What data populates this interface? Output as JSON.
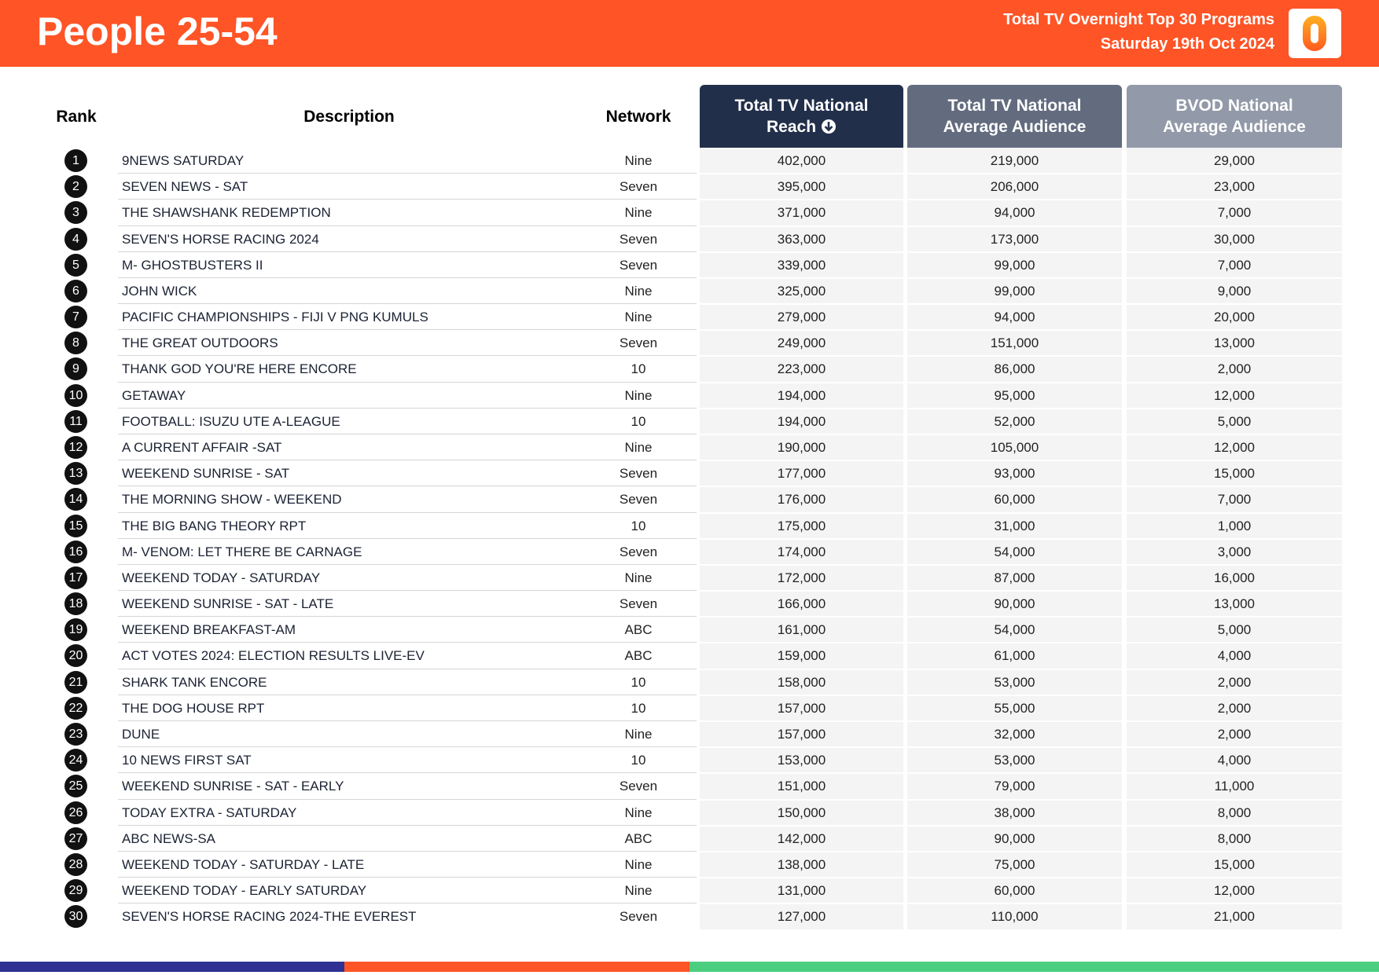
{
  "header": {
    "title": "People 25-54",
    "subtitle": "Total TV Overnight Top 30 Programs",
    "date": "Saturday 19th Oct 2024"
  },
  "table": {
    "columns": [
      [
        "Rank"
      ],
      [
        "Description"
      ],
      [
        "Network"
      ],
      [
        "Total TV National",
        "Reach"
      ],
      [
        "Total TV National",
        "Average Audience"
      ],
      [
        "BVOD National",
        "Average Audience"
      ]
    ],
    "rows": [
      [
        1,
        "9NEWS SATURDAY",
        "Nine",
        "402,000",
        "219,000",
        "29,000"
      ],
      [
        2,
        "SEVEN NEWS - SAT",
        "Seven",
        "395,000",
        "206,000",
        "23,000"
      ],
      [
        3,
        "THE SHAWSHANK REDEMPTION",
        "Nine",
        "371,000",
        "94,000",
        "7,000"
      ],
      [
        4,
        "SEVEN'S HORSE RACING 2024",
        "Seven",
        "363,000",
        "173,000",
        "30,000"
      ],
      [
        5,
        "M- GHOSTBUSTERS II",
        "Seven",
        "339,000",
        "99,000",
        "7,000"
      ],
      [
        6,
        "JOHN WICK",
        "Nine",
        "325,000",
        "99,000",
        "9,000"
      ],
      [
        7,
        "PACIFIC CHAMPIONSHIPS - FIJI V PNG KUMULS",
        "Nine",
        "279,000",
        "94,000",
        "20,000"
      ],
      [
        8,
        "THE GREAT OUTDOORS",
        "Seven",
        "249,000",
        "151,000",
        "13,000"
      ],
      [
        9,
        "THANK GOD YOU'RE HERE ENCORE",
        "10",
        "223,000",
        "86,000",
        "2,000"
      ],
      [
        10,
        "GETAWAY",
        "Nine",
        "194,000",
        "95,000",
        "12,000"
      ],
      [
        11,
        "FOOTBALL: ISUZU UTE A-LEAGUE",
        "10",
        "194,000",
        "52,000",
        "5,000"
      ],
      [
        12,
        "A CURRENT AFFAIR -SAT",
        "Nine",
        "190,000",
        "105,000",
        "12,000"
      ],
      [
        13,
        "WEEKEND SUNRISE - SAT",
        "Seven",
        "177,000",
        "93,000",
        "15,000"
      ],
      [
        14,
        "THE MORNING SHOW - WEEKEND",
        "Seven",
        "176,000",
        "60,000",
        "7,000"
      ],
      [
        15,
        "THE BIG BANG THEORY RPT",
        "10",
        "175,000",
        "31,000",
        "1,000"
      ],
      [
        16,
        "M- VENOM: LET THERE BE CARNAGE",
        "Seven",
        "174,000",
        "54,000",
        "3,000"
      ],
      [
        17,
        "WEEKEND TODAY - SATURDAY",
        "Nine",
        "172,000",
        "87,000",
        "16,000"
      ],
      [
        18,
        "WEEKEND SUNRISE - SAT - LATE",
        "Seven",
        "166,000",
        "90,000",
        "13,000"
      ],
      [
        19,
        "WEEKEND BREAKFAST-AM",
        "ABC",
        "161,000",
        "54,000",
        "5,000"
      ],
      [
        20,
        "ACT VOTES 2024: ELECTION RESULTS LIVE-EV",
        "ABC",
        "159,000",
        "61,000",
        "4,000"
      ],
      [
        21,
        "SHARK TANK ENCORE",
        "10",
        "158,000",
        "53,000",
        "2,000"
      ],
      [
        22,
        "THE DOG HOUSE RPT",
        "10",
        "157,000",
        "55,000",
        "2,000"
      ],
      [
        23,
        "DUNE",
        "Nine",
        "157,000",
        "32,000",
        "2,000"
      ],
      [
        24,
        "10 NEWS FIRST SAT",
        "10",
        "153,000",
        "53,000",
        "4,000"
      ],
      [
        25,
        "WEEKEND SUNRISE - SAT - EARLY",
        "Seven",
        "151,000",
        "79,000",
        "11,000"
      ],
      [
        26,
        "TODAY EXTRA - SATURDAY",
        "Nine",
        "150,000",
        "38,000",
        "8,000"
      ],
      [
        27,
        "ABC NEWS-SA",
        "ABC",
        "142,000",
        "90,000",
        "8,000"
      ],
      [
        28,
        "WEEKEND TODAY - SATURDAY - LATE",
        "Nine",
        "138,000",
        "75,000",
        "15,000"
      ],
      [
        29,
        "WEEKEND TODAY - EARLY SATURDAY",
        "Nine",
        "131,000",
        "60,000",
        "12,000"
      ],
      [
        30,
        "SEVEN'S HORSE RACING 2024-THE EVEREST",
        "Seven",
        "127,000",
        "110,000",
        "21,000"
      ]
    ]
  }
}
